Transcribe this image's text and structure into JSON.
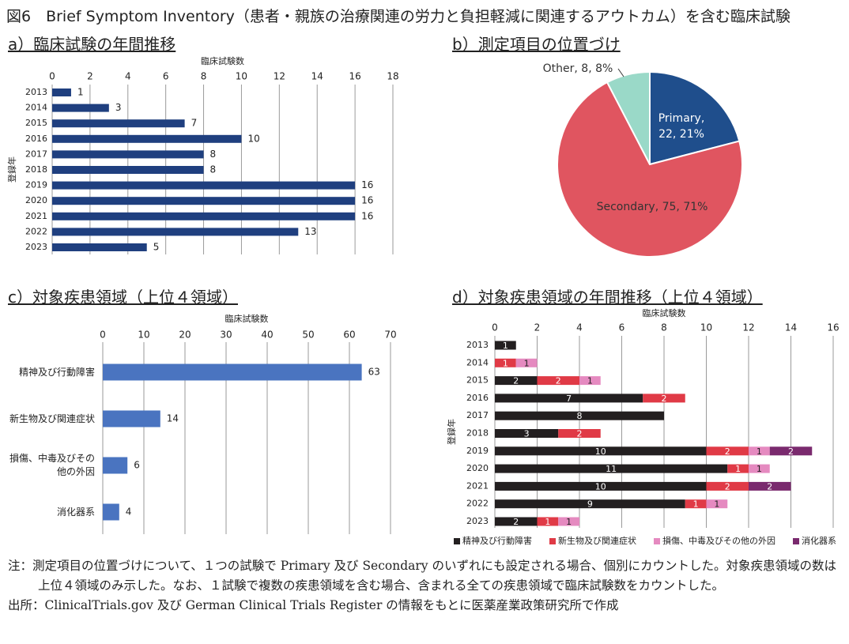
{
  "title": "図6　Brief Symptom Inventory（患者・親族の治療関連の労力と負担軽減に関連するアウトカム）を含む臨床試験",
  "chart_data": [
    {
      "type": "bar",
      "orientation": "horizontal",
      "title": "a）臨床試験の年間推移",
      "x_label": "臨床試験数",
      "y_label": "登録年",
      "categories": [
        "2013",
        "2014",
        "2015",
        "2016",
        "2017",
        "2018",
        "2019",
        "2020",
        "2021",
        "2022",
        "2023"
      ],
      "values": [
        1,
        3,
        7,
        10,
        8,
        8,
        16,
        16,
        16,
        13,
        5
      ],
      "color": "#1f3f7f",
      "xlim": [
        0,
        18
      ],
      "xticks": [
        0,
        2,
        4,
        6,
        8,
        10,
        12,
        14,
        16,
        18
      ],
      "grid": true
    },
    {
      "type": "pie",
      "title": "b）測定項目の位置づけ",
      "categories": [
        "Primary",
        "Secondary",
        "Other"
      ],
      "values": [
        22,
        75,
        8
      ],
      "value_labels": [
        "Primary, 22, 21%",
        "Secondary, 75, 71%",
        "Other, 8, 8%"
      ],
      "colors": [
        "#1f4e8c",
        "#e05560",
        "#9ad9c8"
      ]
    },
    {
      "type": "bar",
      "orientation": "horizontal",
      "title": "c）対象疾患領域（上位４領域）",
      "x_label": "臨床試験数",
      "categories": [
        "精神及び行動障害",
        "新生物及び関連症状",
        "損傷、中毒及びその他の外因",
        "消化器系"
      ],
      "values": [
        63,
        14,
        6,
        4
      ],
      "color": "#4a74c0",
      "xlim": [
        0,
        70
      ],
      "xticks": [
        0,
        10,
        20,
        30,
        40,
        50,
        60,
        70
      ],
      "grid": true
    },
    {
      "type": "bar",
      "orientation": "horizontal",
      "stacked": true,
      "title": "d）対象疾患領域の年間推移（上位４領域）",
      "x_label": "臨床試験数",
      "y_label": "登録年",
      "categories": [
        "2013",
        "2014",
        "2015",
        "2016",
        "2017",
        "2018",
        "2019",
        "2020",
        "2021",
        "2022",
        "2023"
      ],
      "series": [
        {
          "name": "精神及び行動障害",
          "color": "#231f20",
          "values": [
            1,
            null,
            2,
            7,
            8,
            3,
            10,
            11,
            10,
            9,
            2
          ]
        },
        {
          "name": "新生物及び関連症状",
          "color": "#e03a46",
          "values": [
            null,
            1,
            2,
            2,
            null,
            2,
            2,
            1,
            2,
            1,
            1
          ]
        },
        {
          "name": "損傷、中毒及びその他の外因",
          "color": "#e58ac0",
          "values": [
            null,
            1,
            1,
            null,
            null,
            null,
            1,
            1,
            null,
            1,
            1
          ]
        },
        {
          "name": "消化器系",
          "color": "#7a2a6e",
          "values": [
            null,
            null,
            null,
            null,
            null,
            null,
            2,
            null,
            2,
            null,
            null
          ]
        }
      ],
      "xlim": [
        0,
        16
      ],
      "xticks": [
        0,
        2,
        4,
        6,
        8,
        10,
        12,
        14,
        16
      ],
      "grid": true,
      "legend": "bottom"
    }
  ],
  "notes": [
    "注：測定項目の位置づけについて、１つの試験で Primary 及び Secondary のいずれにも設定される場合、個別にカウントした。対象疾患領域の数は上位４領域のみ示した。なお、１試験で複数の疾患領域を含む場合、含まれる全ての疾患領域で臨床試験数をカウントした。",
    "出所：ClinicalTrials.gov 及び German Clinical Trials Register の情報をもとに医薬産業政策研究所で作成"
  ]
}
